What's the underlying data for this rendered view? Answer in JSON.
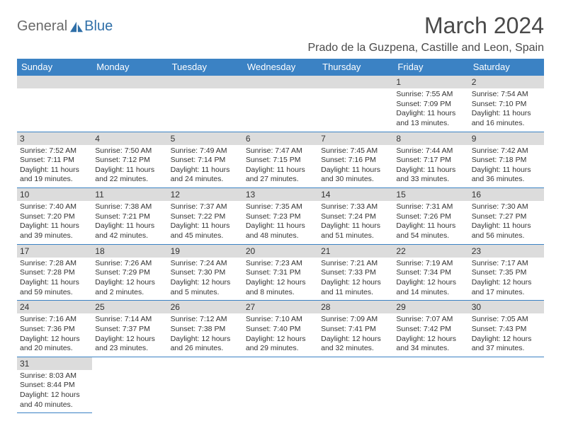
{
  "logo": {
    "text1": "General",
    "text2": "Blue",
    "color1": "#6a6a6a",
    "color2": "#2f6fa8",
    "icon_color": "#2f6fa8"
  },
  "title": "March 2024",
  "location": "Prado de la Guzpena, Castille and Leon, Spain",
  "header_bg": "#3b82c4",
  "header_fg": "#ffffff",
  "daynum_bg": "#dcdcdc",
  "border_color": "#3b82c4",
  "weekdays": [
    "Sunday",
    "Monday",
    "Tuesday",
    "Wednesday",
    "Thursday",
    "Friday",
    "Saturday"
  ],
  "weeks": [
    [
      null,
      null,
      null,
      null,
      null,
      {
        "n": "1",
        "sr": "7:55 AM",
        "ss": "7:09 PM",
        "dl": "11 hours and 13 minutes."
      },
      {
        "n": "2",
        "sr": "7:54 AM",
        "ss": "7:10 PM",
        "dl": "11 hours and 16 minutes."
      }
    ],
    [
      {
        "n": "3",
        "sr": "7:52 AM",
        "ss": "7:11 PM",
        "dl": "11 hours and 19 minutes."
      },
      {
        "n": "4",
        "sr": "7:50 AM",
        "ss": "7:12 PM",
        "dl": "11 hours and 22 minutes."
      },
      {
        "n": "5",
        "sr": "7:49 AM",
        "ss": "7:14 PM",
        "dl": "11 hours and 24 minutes."
      },
      {
        "n": "6",
        "sr": "7:47 AM",
        "ss": "7:15 PM",
        "dl": "11 hours and 27 minutes."
      },
      {
        "n": "7",
        "sr": "7:45 AM",
        "ss": "7:16 PM",
        "dl": "11 hours and 30 minutes."
      },
      {
        "n": "8",
        "sr": "7:44 AM",
        "ss": "7:17 PM",
        "dl": "11 hours and 33 minutes."
      },
      {
        "n": "9",
        "sr": "7:42 AM",
        "ss": "7:18 PM",
        "dl": "11 hours and 36 minutes."
      }
    ],
    [
      {
        "n": "10",
        "sr": "7:40 AM",
        "ss": "7:20 PM",
        "dl": "11 hours and 39 minutes."
      },
      {
        "n": "11",
        "sr": "7:38 AM",
        "ss": "7:21 PM",
        "dl": "11 hours and 42 minutes."
      },
      {
        "n": "12",
        "sr": "7:37 AM",
        "ss": "7:22 PM",
        "dl": "11 hours and 45 minutes."
      },
      {
        "n": "13",
        "sr": "7:35 AM",
        "ss": "7:23 PM",
        "dl": "11 hours and 48 minutes."
      },
      {
        "n": "14",
        "sr": "7:33 AM",
        "ss": "7:24 PM",
        "dl": "11 hours and 51 minutes."
      },
      {
        "n": "15",
        "sr": "7:31 AM",
        "ss": "7:26 PM",
        "dl": "11 hours and 54 minutes."
      },
      {
        "n": "16",
        "sr": "7:30 AM",
        "ss": "7:27 PM",
        "dl": "11 hours and 56 minutes."
      }
    ],
    [
      {
        "n": "17",
        "sr": "7:28 AM",
        "ss": "7:28 PM",
        "dl": "11 hours and 59 minutes."
      },
      {
        "n": "18",
        "sr": "7:26 AM",
        "ss": "7:29 PM",
        "dl": "12 hours and 2 minutes."
      },
      {
        "n": "19",
        "sr": "7:24 AM",
        "ss": "7:30 PM",
        "dl": "12 hours and 5 minutes."
      },
      {
        "n": "20",
        "sr": "7:23 AM",
        "ss": "7:31 PM",
        "dl": "12 hours and 8 minutes."
      },
      {
        "n": "21",
        "sr": "7:21 AM",
        "ss": "7:33 PM",
        "dl": "12 hours and 11 minutes."
      },
      {
        "n": "22",
        "sr": "7:19 AM",
        "ss": "7:34 PM",
        "dl": "12 hours and 14 minutes."
      },
      {
        "n": "23",
        "sr": "7:17 AM",
        "ss": "7:35 PM",
        "dl": "12 hours and 17 minutes."
      }
    ],
    [
      {
        "n": "24",
        "sr": "7:16 AM",
        "ss": "7:36 PM",
        "dl": "12 hours and 20 minutes."
      },
      {
        "n": "25",
        "sr": "7:14 AM",
        "ss": "7:37 PM",
        "dl": "12 hours and 23 minutes."
      },
      {
        "n": "26",
        "sr": "7:12 AM",
        "ss": "7:38 PM",
        "dl": "12 hours and 26 minutes."
      },
      {
        "n": "27",
        "sr": "7:10 AM",
        "ss": "7:40 PM",
        "dl": "12 hours and 29 minutes."
      },
      {
        "n": "28",
        "sr": "7:09 AM",
        "ss": "7:41 PM",
        "dl": "12 hours and 32 minutes."
      },
      {
        "n": "29",
        "sr": "7:07 AM",
        "ss": "7:42 PM",
        "dl": "12 hours and 34 minutes."
      },
      {
        "n": "30",
        "sr": "7:05 AM",
        "ss": "7:43 PM",
        "dl": "12 hours and 37 minutes."
      }
    ],
    [
      {
        "n": "31",
        "sr": "8:03 AM",
        "ss": "8:44 PM",
        "dl": "12 hours and 40 minutes."
      },
      null,
      null,
      null,
      null,
      null,
      null
    ]
  ],
  "labels": {
    "sunrise": "Sunrise:",
    "sunset": "Sunset:",
    "daylight": "Daylight:"
  }
}
